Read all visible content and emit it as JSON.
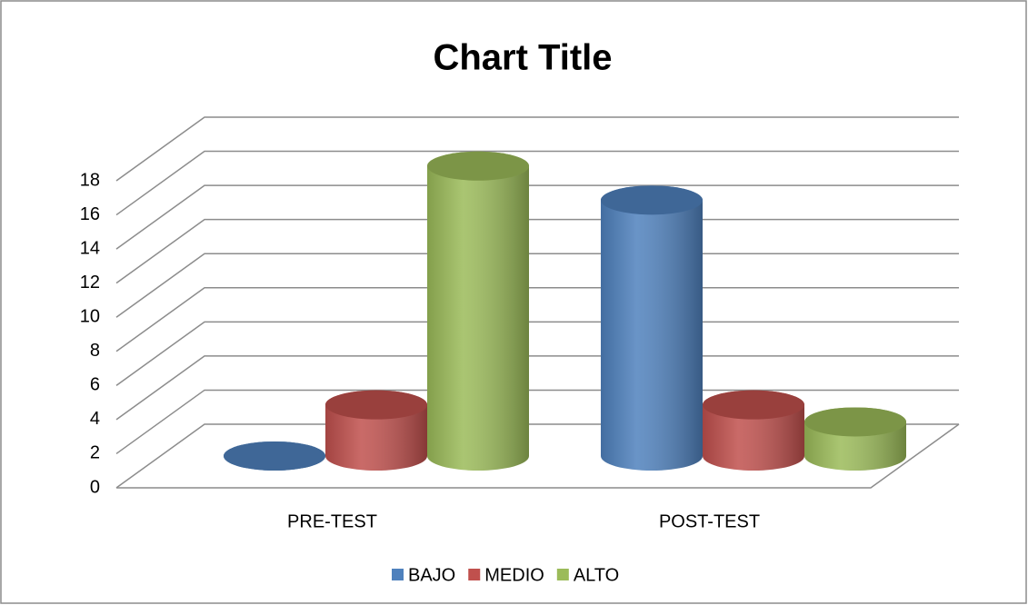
{
  "chart_data": {
    "type": "bar3d",
    "title": "Chart Title",
    "categories": [
      "PRE-TEST",
      "POST-TEST"
    ],
    "series": [
      {
        "name": "BAJO",
        "color": "#4f81bd",
        "values": [
          0,
          15
        ]
      },
      {
        "name": "MEDIO",
        "color": "#c0504d",
        "values": [
          3,
          3
        ]
      },
      {
        "name": "ALTO",
        "color": "#9bbb59",
        "values": [
          17,
          2
        ]
      }
    ],
    "ylim": [
      0,
      18
    ],
    "yticks": [
      0,
      2,
      4,
      6,
      8,
      10,
      12,
      14,
      16,
      18
    ],
    "grid": true,
    "legend": "bottom"
  }
}
